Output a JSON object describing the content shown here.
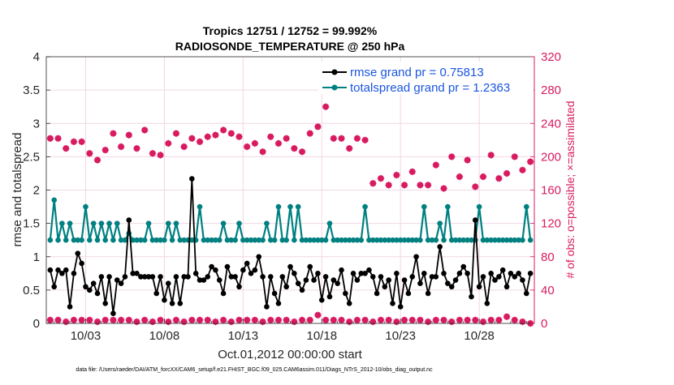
{
  "chart_data": {
    "type": "line",
    "title_line1": "Tropics 12751 / 12752 = 99.992%",
    "title_line2": "RADIOSONDE_TEMPERATURE @ 250 hPa",
    "xlabel": "Oct.01,2012 00:00:00 start",
    "ylabel_left": "rmse and totalspread",
    "ylabel_right": "# of obs: o=possible; ×=assimilated",
    "footnote": "data file: /Users/raeder/DAI/ATM_forcXX/CAM6_setup/f.e21.FHIST_BGC.f09_025.CAM6assim.011/Diags_NTrS_2012-10/obs_diag_output.nc",
    "xlim": [
      0.5,
      31.5
    ],
    "ylim_left": [
      0,
      4
    ],
    "ylim_right": [
      0,
      320
    ],
    "left_ticks": [
      0,
      0.5,
      1,
      1.5,
      2,
      2.5,
      3,
      3.5,
      4
    ],
    "left_tick_labels": [
      "0",
      "0.5",
      "1",
      "1.5",
      "2",
      "2.5",
      "3",
      "3.5",
      "4"
    ],
    "right_ticks": [
      0,
      40,
      80,
      120,
      160,
      200,
      240,
      280,
      320
    ],
    "right_tick_labels": [
      "0",
      "40",
      "80",
      "120",
      "160",
      "200",
      "240",
      "280",
      "320"
    ],
    "x_ticks": [
      3,
      8,
      13,
      18,
      23,
      28
    ],
    "x_tick_labels": [
      "10/03",
      "10/08",
      "10/13",
      "10/18",
      "10/23",
      "10/28"
    ],
    "x_minor_step": 1,
    "colors": {
      "rmse": "#000000",
      "spread": "#008080",
      "obs": "#d81b60",
      "legend_text": "#1a56e0",
      "grid": "#f2d6e4"
    },
    "legend": [
      {
        "key": "rmse",
        "label": "rmse grand pr = 0.75813"
      },
      {
        "key": "spread",
        "label": "totalspread grand pr = 1.2363"
      }
    ],
    "x": [
      0.75,
      1.0,
      1.25,
      1.5,
      1.75,
      2.0,
      2.25,
      2.5,
      2.75,
      3.0,
      3.25,
      3.5,
      3.75,
      4.0,
      4.25,
      4.5,
      4.75,
      5.0,
      5.25,
      5.5,
      5.75,
      6.0,
      6.25,
      6.5,
      6.75,
      7.0,
      7.25,
      7.5,
      7.75,
      8.0,
      8.25,
      8.5,
      8.75,
      9.0,
      9.25,
      9.5,
      9.75,
      10.0,
      10.25,
      10.5,
      10.75,
      11.0,
      11.25,
      11.5,
      11.75,
      12.0,
      12.25,
      12.5,
      12.75,
      13.0,
      13.25,
      13.5,
      13.75,
      14.0,
      14.25,
      14.5,
      14.75,
      15.0,
      15.25,
      15.5,
      15.75,
      16.0,
      16.25,
      16.5,
      16.75,
      17.0,
      17.25,
      17.5,
      17.75,
      18.0,
      18.25,
      18.5,
      18.75,
      19.0,
      19.25,
      19.5,
      19.75,
      20.0,
      20.25,
      20.5,
      20.75,
      21.0,
      21.25,
      21.5,
      21.75,
      22.0,
      22.25,
      22.5,
      22.75,
      23.0,
      23.25,
      23.5,
      23.75,
      24.0,
      24.25,
      24.5,
      24.75,
      25.0,
      25.25,
      25.5,
      25.75,
      26.0,
      26.25,
      26.5,
      26.75,
      27.0,
      27.25,
      27.5,
      27.75,
      28.0,
      28.25,
      28.5,
      28.75,
      29.0,
      29.25,
      29.5,
      29.75,
      30.0,
      30.25,
      30.5,
      30.75,
      31.0,
      31.25
    ],
    "rmse": [
      0.8,
      0.55,
      0.8,
      0.75,
      0.8,
      0.25,
      0.75,
      1.05,
      0.9,
      0.55,
      0.5,
      0.6,
      0.45,
      0.7,
      0.3,
      0.7,
      0.15,
      0.65,
      0.6,
      0.7,
      1.55,
      0.75,
      0.75,
      0.7,
      0.7,
      0.7,
      0.7,
      0.45,
      0.7,
      0.35,
      0.6,
      0.3,
      0.7,
      0.3,
      0.7,
      0.7,
      2.17,
      0.75,
      0.65,
      0.65,
      0.7,
      0.85,
      0.8,
      0.65,
      0.45,
      0.85,
      0.7,
      0.7,
      0.55,
      0.8,
      0.9,
      0.75,
      0.8,
      1.0,
      0.7,
      0.25,
      0.7,
      0.45,
      0.3,
      0.7,
      0.55,
      0.85,
      0.75,
      0.6,
      0.5,
      0.65,
      0.85,
      0.65,
      0.75,
      0.35,
      0.7,
      0.4,
      0.65,
      0.6,
      0.8,
      0.45,
      0.3,
      0.75,
      0.65,
      0.75,
      0.75,
      0.8,
      0.7,
      0.45,
      0.7,
      0.55,
      0.65,
      0.3,
      0.75,
      0.25,
      0.65,
      0.45,
      0.7,
      1.0,
      0.6,
      0.75,
      0.45,
      0.7,
      0.7,
      1.15,
      0.75,
      0.6,
      0.55,
      0.65,
      0.75,
      0.85,
      0.75,
      0.4,
      1.55,
      0.55,
      0.7,
      0.3,
      0.75,
      0.65,
      0.7,
      0.8,
      0.55,
      0.75,
      0.7,
      0.75,
      0.65,
      0.45,
      0.75
    ],
    "spread": [
      1.25,
      1.85,
      1.25,
      1.5,
      1.25,
      1.5,
      1.25,
      1.25,
      1.25,
      1.75,
      1.25,
      1.5,
      1.25,
      1.5,
      1.25,
      1.5,
      1.25,
      1.5,
      1.25,
      1.25,
      1.35,
      1.25,
      1.25,
      1.25,
      1.25,
      1.5,
      1.25,
      1.25,
      1.25,
      1.25,
      1.5,
      1.25,
      1.5,
      1.25,
      1.25,
      1.25,
      1.25,
      1.25,
      1.75,
      1.25,
      1.25,
      1.25,
      1.25,
      1.25,
      1.5,
      1.25,
      1.25,
      1.25,
      1.5,
      1.25,
      1.25,
      1.25,
      1.25,
      1.25,
      1.25,
      1.5,
      1.25,
      1.25,
      1.75,
      1.25,
      1.25,
      1.75,
      1.25,
      1.75,
      1.25,
      1.25,
      1.25,
      1.25,
      1.25,
      1.25,
      1.25,
      1.5,
      1.25,
      1.25,
      1.25,
      1.25,
      1.25,
      1.25,
      1.25,
      1.25,
      1.75,
      1.25,
      1.25,
      1.25,
      1.25,
      1.25,
      1.25,
      1.25,
      1.25,
      1.25,
      1.25,
      1.25,
      1.25,
      1.25,
      1.25,
      1.75,
      1.25,
      1.25,
      1.25,
      1.5,
      1.25,
      1.75,
      1.25,
      1.25,
      1.25,
      1.25,
      1.25,
      1.25,
      1.25,
      1.75,
      1.25,
      1.25,
      1.25,
      1.25,
      1.25,
      1.25,
      1.25,
      1.25,
      1.25,
      1.25,
      1.25,
      1.75,
      1.25
    ],
    "obs_x": [
      0.75,
      1.25,
      1.75,
      2.25,
      2.75,
      3.25,
      3.75,
      4.25,
      4.75,
      5.25,
      5.75,
      6.25,
      6.75,
      7.25,
      7.75,
      8.25,
      8.75,
      9.25,
      9.75,
      10.25,
      10.75,
      11.25,
      11.75,
      12.25,
      12.75,
      13.25,
      13.75,
      14.25,
      14.75,
      15.25,
      15.75,
      16.25,
      16.75,
      17.25,
      17.75,
      18.25,
      18.75,
      19.25,
      19.75,
      20.25,
      20.75,
      21.25,
      21.75,
      22.25,
      22.75,
      23.25,
      23.75,
      24.25,
      24.75,
      25.25,
      25.75,
      26.25,
      26.75,
      27.25,
      27.75,
      28.25,
      28.75,
      29.25,
      29.75,
      30.25,
      30.75,
      31.25
    ],
    "obs_possible": [
      222,
      222,
      210,
      218,
      218,
      204,
      196,
      208,
      228,
      212,
      226,
      210,
      232,
      204,
      202,
      216,
      228,
      212,
      222,
      218,
      224,
      226,
      232,
      228,
      224,
      212,
      216,
      206,
      224,
      216,
      222,
      210,
      206,
      228,
      236,
      260,
      222,
      222,
      210,
      222,
      220,
      168,
      174,
      166,
      178,
      166,
      182,
      166,
      166,
      190,
      162,
      200,
      176,
      196,
      164,
      176,
      202,
      174,
      180,
      200,
      184,
      194
    ],
    "obs_assimilated": [
      4,
      4,
      2,
      4,
      4,
      4,
      2,
      4,
      4,
      4,
      4,
      2,
      4,
      2,
      4,
      2,
      4,
      2,
      4,
      4,
      4,
      2,
      4,
      2,
      4,
      4,
      4,
      2,
      4,
      4,
      4,
      2,
      4,
      4,
      10,
      4,
      4,
      4,
      2,
      4,
      4,
      2,
      4,
      4,
      2,
      4,
      4,
      4,
      2,
      4,
      4,
      2,
      4,
      4,
      4,
      2,
      4,
      4,
      8,
      4,
      2,
      0
    ]
  }
}
